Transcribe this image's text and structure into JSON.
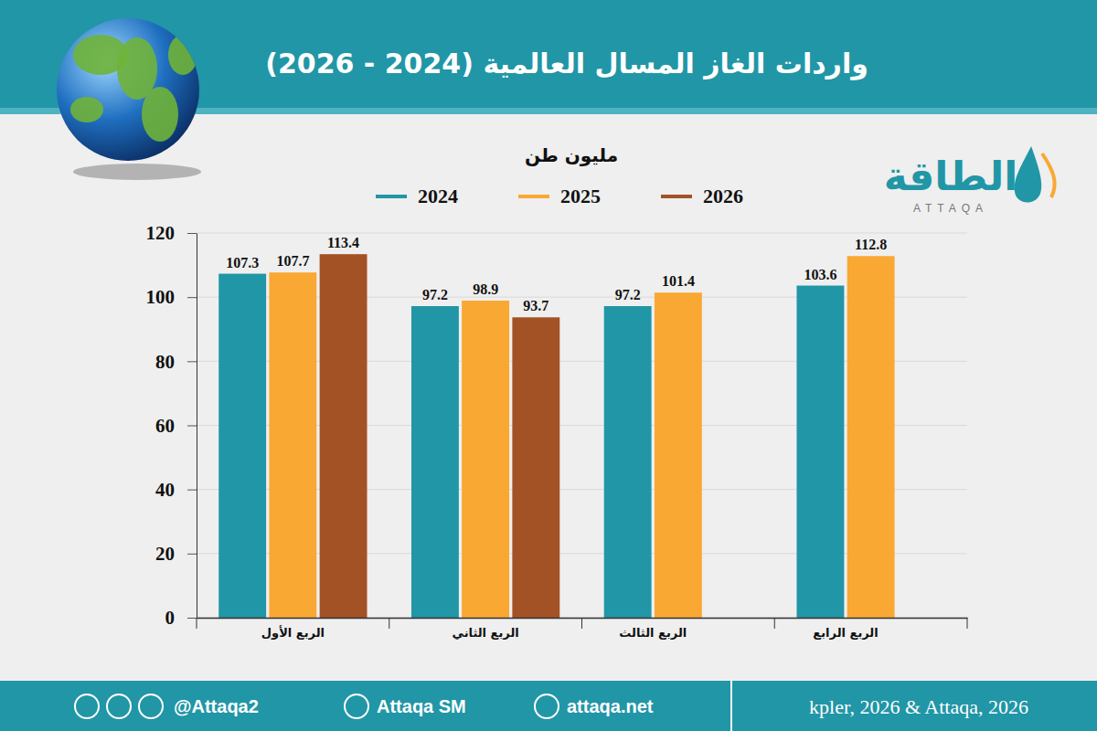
{
  "chart_data": {
    "type": "bar",
    "title": "واردات الغاز المسال العالمية (2024 - 2026)",
    "y_label": "مليون طن",
    "source": "kpler, 2026 & Attaqa, 2026",
    "categories": [
      "الربع الأول",
      "الربع الثاني",
      "الربع الثالث",
      "الربع الرابع"
    ],
    "series": [
      {
        "name": "2024",
        "color": "#2196a6",
        "values": [
          107.3,
          97.2,
          97.2,
          103.6
        ]
      },
      {
        "name": "2025",
        "color": "#f9a833",
        "values": [
          107.7,
          98.9,
          101.4,
          112.8
        ]
      },
      {
        "name": "2026",
        "color": "#a35226",
        "values": [
          113.4,
          93.7,
          null,
          null
        ]
      }
    ],
    "ylim": [
      0,
      120
    ],
    "yticks": [
      0,
      20,
      40,
      60,
      80,
      100,
      120
    ],
    "grid": true,
    "legend": "top",
    "data_labels": true
  },
  "branding": {
    "logo": "الطاقة",
    "logo_latin": "ATTAQA",
    "handles": [
      "@Attaqa2",
      "Attaqa SM",
      "attaqa.net"
    ]
  }
}
